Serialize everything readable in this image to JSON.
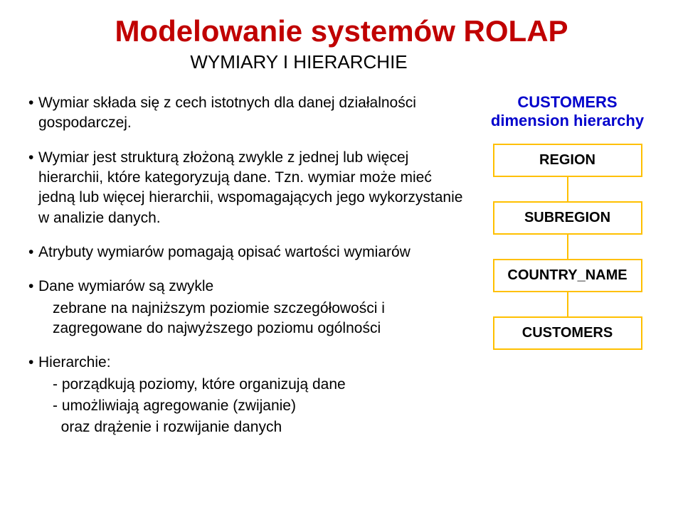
{
  "slide": {
    "title": "Modelowanie systemów ROLAP",
    "subtitle": "WYMIARY I HIERARCHIE",
    "title_color": "#c00000",
    "text_color": "#000000"
  },
  "bullets": {
    "b1": "Wymiar składa się z cech istotnych dla danej działalności gospodarczej.",
    "b2": "Wymiar jest strukturą złożoną zwykle z jednej lub więcej hierarchii, które kategoryzują dane. Tzn. wymiar może mieć jedną lub więcej hierarchii, wspomagających jego wykorzystanie w analizie danych.",
    "b3": "Atrybuty wymiarów pomagają opisać wartości wymiarów",
    "b4": "Dane wymiarów są zwykle",
    "b4_line2": "zebrane na najniższym poziomie szczegółowości i zagregowane do najwyższego poziomu ogólności",
    "b5": "Hierarchie:",
    "b5_sub1": "- porządkują poziomy, które organizują dane",
    "b5_sub2": "- umożliwiają agregowanie (zwijanie)",
    "b5_sub3": "  oraz drążenie i rozwijanie danych"
  },
  "diagram": {
    "header_line1": "CUSTOMERS",
    "header_line2": "dimension hierarchy",
    "header_color": "#0000cc",
    "box_border": "#ffc000",
    "box_bg": "#ffffff",
    "connector_color": "#ffc000",
    "levels": [
      "REGION",
      "SUBREGION",
      "COUNTRY_NAME",
      "CUSTOMERS"
    ]
  }
}
